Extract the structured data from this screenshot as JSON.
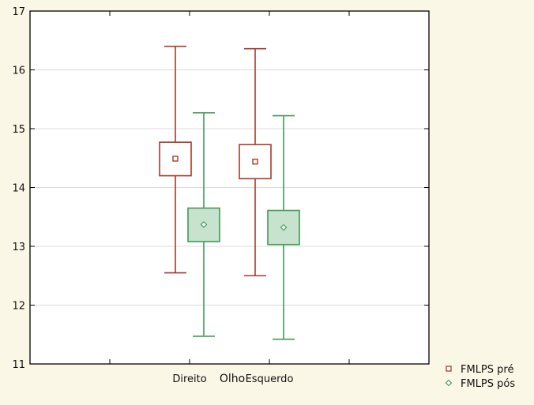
{
  "chart_data": {
    "type": "box",
    "xlabel": "Olho",
    "ylabel": "",
    "ylim": [
      11,
      17
    ],
    "yticks": [
      11,
      12,
      13,
      14,
      15,
      16,
      17
    ],
    "categories": [
      "Direito",
      "Esquerdo"
    ],
    "legend_position": "bottom-right",
    "series": [
      {
        "name": "FMLPS pré",
        "color": "#a83a2a",
        "fill": "#ffffff",
        "marker": "square",
        "boxes": [
          {
            "category": "Direito",
            "mean": 14.49,
            "box_low": 14.2,
            "box_high": 14.77,
            "whisker_low": 12.55,
            "whisker_high": 16.4
          },
          {
            "category": "Esquerdo",
            "mean": 14.44,
            "box_low": 14.15,
            "box_high": 14.73,
            "whisker_low": 12.5,
            "whisker_high": 16.36
          }
        ]
      },
      {
        "name": "FMLPS pós",
        "color": "#3f9a56",
        "fill": "#c7e2cd",
        "marker": "diamond",
        "boxes": [
          {
            "category": "Direito",
            "mean": 13.37,
            "box_low": 13.08,
            "box_high": 13.65,
            "whisker_low": 11.47,
            "whisker_high": 15.27
          },
          {
            "category": "Esquerdo",
            "mean": 13.32,
            "box_low": 13.03,
            "box_high": 13.61,
            "whisker_low": 11.42,
            "whisker_high": 15.22
          }
        ]
      }
    ]
  }
}
